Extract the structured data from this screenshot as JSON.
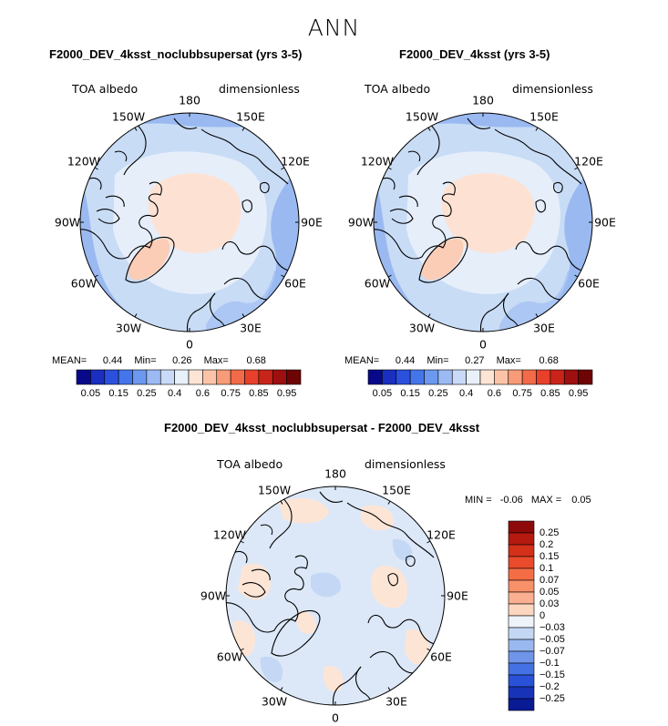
{
  "title": "ANN",
  "panels": [
    {
      "id": "left",
      "title": "F2000_DEV_4ksst_noclubbsupersat (yrs 3-5)",
      "variable": "TOA albedo",
      "units": "dimensionless",
      "stats": {
        "mean_label": "MEAN=",
        "mean": "0.44",
        "min_label": "Min=",
        "min": "0.26",
        "max_label": "Max=",
        "max": "0.68"
      }
    },
    {
      "id": "right",
      "title": "F2000_DEV_4ksst (yrs 3-5)",
      "variable": "TOA albedo",
      "units": "dimensionless",
      "stats": {
        "mean_label": "MEAN=",
        "mean": "0.44",
        "min_label": "Min=",
        "min": "0.27",
        "max_label": "Max=",
        "max": "0.68"
      }
    },
    {
      "id": "diff",
      "title": "F2000_DEV_4ksst_noclubbsupersat - F2000_DEV_4ksst",
      "variable": "TOA albedo",
      "units": "dimensionless",
      "stats": {
        "min_label": "MIN =",
        "min": "-0.06",
        "max_label": "MAX =",
        "max": "0.05"
      }
    }
  ],
  "longitude_labels": [
    "180",
    "150E",
    "120E",
    "90E",
    "60E",
    "30E",
    "0",
    "30W",
    "60W",
    "90W",
    "120W",
    "150W"
  ],
  "colorbar_abs": {
    "tick_labels": [
      "0.05",
      "0.15",
      "0.25",
      "0.4",
      "0.6",
      "0.75",
      "0.85",
      "0.95"
    ],
    "colors": [
      "#08088a",
      "#1a2fc0",
      "#2b50dd",
      "#4575ea",
      "#6d98f0",
      "#9bbaf4",
      "#c8daf7",
      "#e8f0fa",
      "#fde5d6",
      "#fbc4a8",
      "#f89b78",
      "#f36a48",
      "#e8402a",
      "#c8241a",
      "#9e1010",
      "#6e0404"
    ]
  },
  "colorbar_diff": {
    "tick_labels": [
      "0.25",
      "0.2",
      "0.15",
      "0.1",
      "0.07",
      "0.05",
      "0.03",
      "0",
      "−0.03",
      "−0.05",
      "−0.07",
      "−0.1",
      "−0.15",
      "−0.2",
      "−0.25"
    ],
    "colors": [
      "#8e0a0a",
      "#b51a10",
      "#d4301a",
      "#ea4b2c",
      "#f56d45",
      "#f89068",
      "#fab090",
      "#fdd6c0",
      "#eef3fa",
      "#c4d8f5",
      "#9ab8f0",
      "#6f95ea",
      "#4472e4",
      "#2a52d8",
      "#1733b8",
      "#0a1a94"
    ]
  },
  "map_colors": {
    "ocean": "#c8dcf6",
    "ocean_dark": "#9ab9f1",
    "land": "#fde2d4",
    "land_warm": "#fbcdb6",
    "ice": "#e6eefa",
    "diff_base": "#dce8f8",
    "diff_pos": "#fde5d6",
    "diff_neg": "#c4d8f5"
  }
}
